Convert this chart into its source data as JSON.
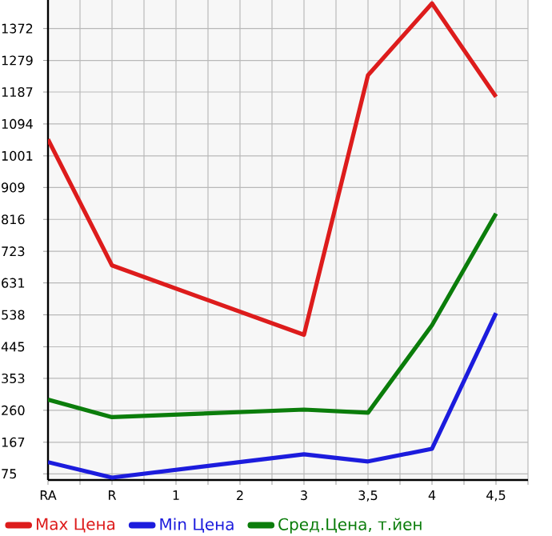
{
  "chart_data": {
    "type": "line",
    "categories": [
      "RA",
      "R",
      "1",
      "2",
      "3",
      "3,5",
      "4",
      "4,5"
    ],
    "series": [
      {
        "name": "Max Цена",
        "color": "#dd1c1c",
        "values": [
          1049,
          682,
          null,
          null,
          480,
          1236,
          1445,
          1173
        ]
      },
      {
        "name": "Min Цена",
        "color": "#1c1cdd",
        "values": [
          109,
          64,
          null,
          null,
          132,
          111,
          148,
          543
        ]
      },
      {
        "name": "Сред.Цена, т.йен",
        "color": "#0b7d0b",
        "values": [
          291,
          240,
          null,
          null,
          262,
          253,
          508,
          833
        ]
      }
    ],
    "ylim": [
      57,
      1455
    ],
    "yticks": [
      75,
      167,
      260,
      353,
      445,
      538,
      631,
      723,
      816,
      909,
      1001,
      1094,
      1187,
      1279,
      1372
    ],
    "grid": true,
    "legend": "bottom",
    "marker": "none",
    "line_style": "solid"
  }
}
